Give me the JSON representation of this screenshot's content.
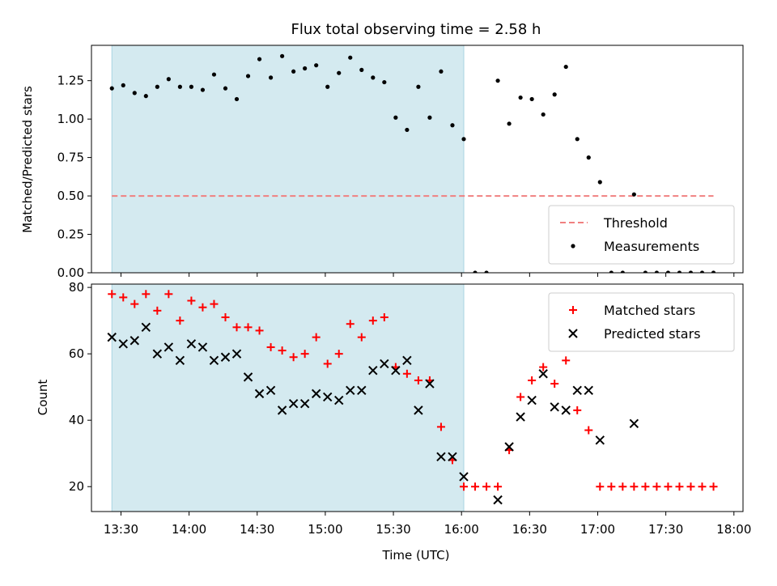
{
  "chart_data": {
    "type": "scatter",
    "title": "Flux total observing time = 2.58 h",
    "xlabel": "Time (UTC)",
    "xlim": [
      "13:17",
      "18:04"
    ],
    "xticks": [
      "13:30",
      "14:00",
      "14:30",
      "15:00",
      "15:30",
      "16:00",
      "16:30",
      "17:00",
      "17:30",
      "18:00"
    ],
    "shaded_span": [
      "13:26",
      "16:01"
    ],
    "shade_color": "#d4eaf0",
    "panels": [
      {
        "id": "ratio",
        "ylabel": "Matched/Predicted stars",
        "ylim": [
          0,
          1.48
        ],
        "yticks": [
          "0.00",
          "0.25",
          "0.50",
          "0.75",
          "1.00",
          "1.25"
        ],
        "legend": "lower right",
        "threshold": {
          "name": "Threshold",
          "value": 0.5,
          "x_start": "13:26",
          "x_end": "17:51",
          "color": "#f08080"
        },
        "series": [
          {
            "name": "Measurements",
            "marker": "dot",
            "color": "#000000",
            "x": [
              "13:26",
              "13:31",
              "13:36",
              "13:41",
              "13:46",
              "13:51",
              "13:56",
              "14:01",
              "14:06",
              "14:11",
              "14:16",
              "14:21",
              "14:26",
              "14:31",
              "14:36",
              "14:41",
              "14:46",
              "14:51",
              "14:56",
              "15:01",
              "15:06",
              "15:11",
              "15:16",
              "15:21",
              "15:26",
              "15:31",
              "15:36",
              "15:41",
              "15:46",
              "15:51",
              "15:56",
              "16:01",
              "16:06",
              "16:11",
              "16:16",
              "16:21",
              "16:26",
              "16:31",
              "16:36",
              "16:41",
              "16:46",
              "16:51",
              "16:56",
              "17:01",
              "17:06",
              "17:11",
              "17:16",
              "17:21",
              "17:26",
              "17:31",
              "17:36",
              "17:41",
              "17:46",
              "17:51"
            ],
            "values": [
              1.2,
              1.22,
              1.17,
              1.15,
              1.21,
              1.26,
              1.21,
              1.21,
              1.19,
              1.29,
              1.2,
              1.13,
              1.28,
              1.39,
              1.27,
              1.41,
              1.31,
              1.33,
              1.35,
              1.21,
              1.3,
              1.4,
              1.32,
              1.27,
              1.24,
              1.01,
              0.93,
              1.21,
              1.01,
              1.31,
              0.96,
              0.87,
              0.0,
              0.0,
              1.25,
              0.97,
              1.14,
              1.13,
              1.03,
              1.16,
              1.34,
              0.87,
              0.75,
              0.59,
              0.0,
              0.0,
              0.51,
              0.0,
              0.0,
              0.0,
              0.0,
              0.0,
              0.0,
              0.0
            ]
          }
        ]
      },
      {
        "id": "count",
        "ylabel": "Count",
        "ylim": [
          12.5,
          81
        ],
        "yticks": [
          "20",
          "40",
          "60",
          "80"
        ],
        "legend": "upper right",
        "series": [
          {
            "name": "Matched stars",
            "marker": "plus",
            "color": "#ff0000",
            "x": [
              "13:26",
              "13:31",
              "13:36",
              "13:41",
              "13:46",
              "13:51",
              "13:56",
              "14:01",
              "14:06",
              "14:11",
              "14:16",
              "14:21",
              "14:26",
              "14:31",
              "14:36",
              "14:41",
              "14:46",
              "14:51",
              "14:56",
              "15:01",
              "15:06",
              "15:11",
              "15:16",
              "15:21",
              "15:26",
              "15:31",
              "15:36",
              "15:41",
              "15:46",
              "15:51",
              "15:56",
              "16:01",
              "16:06",
              "16:11",
              "16:16",
              "16:21",
              "16:26",
              "16:31",
              "16:36",
              "16:41",
              "16:46",
              "16:51",
              "16:56",
              "17:01",
              "17:06",
              "17:11",
              "17:16",
              "17:21",
              "17:26",
              "17:31",
              "17:36",
              "17:41",
              "17:46",
              "17:51"
            ],
            "values": [
              78,
              77,
              75,
              78,
              73,
              78,
              70,
              76,
              74,
              75,
              71,
              68,
              68,
              67,
              62,
              61,
              59,
              60,
              65,
              57,
              60,
              69,
              65,
              70,
              71,
              56,
              54,
              52,
              52,
              38,
              28,
              20,
              20,
              20,
              20,
              31,
              47,
              52,
              56,
              51,
              58,
              43,
              37,
              20,
              20,
              20,
              20,
              20,
              20,
              20,
              20,
              20,
              20,
              20
            ]
          },
          {
            "name": "Predicted stars",
            "marker": "x",
            "color": "#000000",
            "x": [
              "13:26",
              "13:31",
              "13:36",
              "13:41",
              "13:46",
              "13:51",
              "13:56",
              "14:01",
              "14:06",
              "14:11",
              "14:16",
              "14:21",
              "14:26",
              "14:31",
              "14:36",
              "14:41",
              "14:46",
              "14:51",
              "14:56",
              "15:01",
              "15:06",
              "15:11",
              "15:16",
              "15:21",
              "15:26",
              "15:31",
              "15:36",
              "15:41",
              "15:46",
              "15:51",
              "15:56",
              "16:01",
              "16:16",
              "16:21",
              "16:26",
              "16:31",
              "16:36",
              "16:41",
              "16:46",
              "16:51",
              "16:56",
              "17:01",
              "17:16"
            ],
            "values": [
              65,
              63,
              64,
              68,
              60,
              62,
              58,
              63,
              62,
              58,
              59,
              60,
              53,
              48,
              49,
              43,
              45,
              45,
              48,
              47,
              46,
              49,
              49,
              55,
              57,
              55,
              58,
              43,
              51,
              29,
              29,
              23,
              16,
              32,
              41,
              46,
              54,
              44,
              43,
              49,
              49,
              34,
              39
            ]
          }
        ]
      }
    ]
  }
}
